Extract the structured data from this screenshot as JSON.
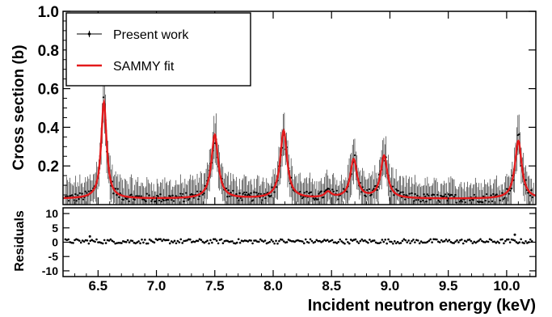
{
  "chart_data": [
    {
      "type": "line",
      "panel": "main",
      "xlabel": "",
      "ylabel": "Cross section (b)",
      "xlim": [
        6.2,
        10.25
      ],
      "ylim": [
        0,
        1.0
      ],
      "x_ticks": [
        "6.5",
        "7.0",
        "7.5",
        "8.0",
        "8.5",
        "9.0",
        "9.5",
        "10.0"
      ],
      "y_ticks": [
        "0.2",
        "0.4",
        "0.6",
        "0.8",
        "1.0"
      ],
      "legend": {
        "placement": "top-left",
        "entries": [
          {
            "name": "Present work",
            "color": "#000000",
            "style": "points-with-errors"
          },
          {
            "name": "SAMMY fit",
            "color": "#e31a1c",
            "style": "line"
          }
        ]
      },
      "series": [
        {
          "name": "SAMMY fit",
          "color": "#e31a1c",
          "baseline": 0.03,
          "peaks": [
            {
              "center": 6.55,
              "height": 0.53
            },
            {
              "center": 7.5,
              "height": 0.36
            },
            {
              "center": 8.09,
              "height": 0.38
            },
            {
              "center": 8.47,
              "height": 0.06
            },
            {
              "center": 8.69,
              "height": 0.23
            },
            {
              "center": 8.95,
              "height": 0.25
            },
            {
              "center": 10.1,
              "height": 0.33
            }
          ]
        },
        {
          "name": "Present work",
          "color": "#000000",
          "note_points_follow_fit": true
        }
      ]
    },
    {
      "type": "scatter",
      "panel": "residuals",
      "ylabel": "Residuals",
      "xlabel": "Incident neutron energy (keV)",
      "xlim": [
        6.2,
        10.25
      ],
      "ylim": [
        -12,
        12
      ],
      "y_ticks": [
        "10",
        "5",
        "0",
        "-5",
        "-10"
      ],
      "series": [
        {
          "name": "",
          "color": "#000000",
          "mean": 0.3,
          "spread": 0.8,
          "outliers": [
            {
              "x": 6.43,
              "y": 2.0
            },
            {
              "x": 10.07,
              "y": 2.6
            }
          ]
        }
      ]
    }
  ],
  "colors": {
    "fit": "#e31a1c",
    "data": "#000000",
    "axis": "#000000"
  }
}
